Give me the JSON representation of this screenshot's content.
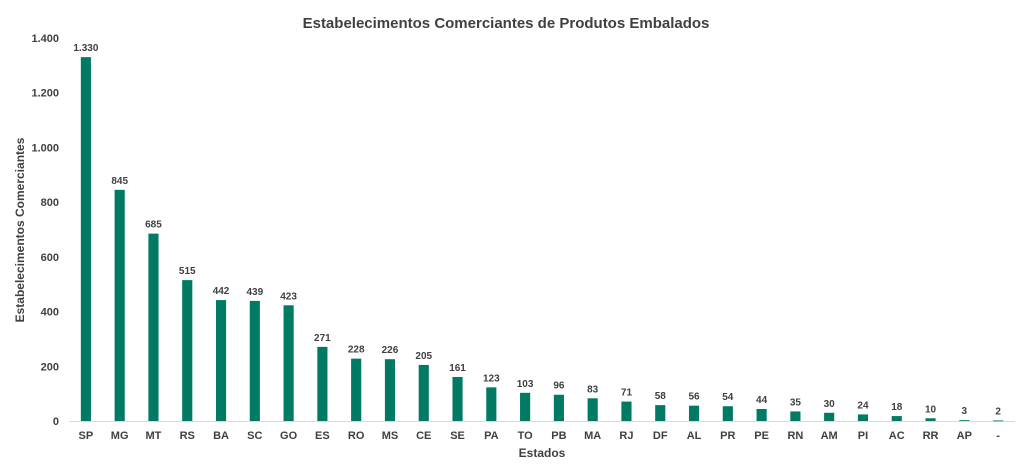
{
  "chart_data": {
    "type": "bar",
    "title": "Estabelecimentos Comerciantes de Produtos Embalados",
    "xlabel": "Estados",
    "ylabel": "Estabelecimentos Comerciantes",
    "categories": [
      "SP",
      "MG",
      "MT",
      "RS",
      "BA",
      "SC",
      "GO",
      "ES",
      "RO",
      "MS",
      "CE",
      "SE",
      "PA",
      "TO",
      "PB",
      "MA",
      "RJ",
      "DF",
      "AL",
      "PR",
      "PE",
      "RN",
      "AM",
      "PI",
      "AC",
      "RR",
      "AP",
      "-"
    ],
    "values": [
      1330,
      845,
      685,
      515,
      442,
      439,
      423,
      271,
      228,
      226,
      205,
      161,
      123,
      103,
      96,
      83,
      71,
      58,
      56,
      54,
      44,
      35,
      30,
      24,
      18,
      10,
      3,
      2
    ],
    "value_labels": [
      "1.330",
      "845",
      "685",
      "515",
      "442",
      "439",
      "423",
      "271",
      "228",
      "226",
      "205",
      "161",
      "123",
      "103",
      "96",
      "83",
      "71",
      "58",
      "56",
      "54",
      "44",
      "35",
      "30",
      "24",
      "18",
      "10",
      "3",
      "2"
    ],
    "ylim": [
      0,
      1400
    ],
    "yticks": [
      0,
      200,
      400,
      600,
      800,
      1000,
      1200,
      1400
    ],
    "ytick_labels": [
      "0",
      "200",
      "400",
      "600",
      "800",
      "1.000",
      "1.200",
      "1.400"
    ],
    "grid": false,
    "legend": "none",
    "bar_color": "#007A62"
  }
}
